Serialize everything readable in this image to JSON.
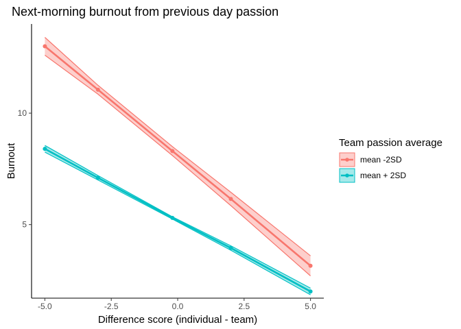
{
  "chart_data": {
    "type": "line",
    "title": "Next-morning burnout from previous day passion",
    "xlabel": "Difference score (individual - team)",
    "ylabel": "Burnout",
    "xlim": [
      -5.5,
      5.5
    ],
    "ylim": [
      1.7,
      14.0
    ],
    "x_ticks": [
      -5.0,
      -2.5,
      0.0,
      2.5,
      5.0
    ],
    "x_tick_labels": [
      "-5.0",
      "-2.5",
      "0.0",
      "2.5",
      "5.0"
    ],
    "y_ticks": [
      5,
      10
    ],
    "y_tick_labels": [
      "5",
      "10"
    ],
    "grid": false,
    "legend": {
      "title": "Team passion average",
      "position": "right"
    },
    "x": [
      -5.0,
      -3.0,
      -0.2,
      2.0,
      5.0
    ],
    "series": [
      {
        "name": "mean -2SD",
        "color": "#F8766D",
        "values": [
          13.0,
          11.05,
          8.3,
          6.15,
          3.15
        ],
        "ci_lower": [
          12.6,
          10.85,
          8.1,
          5.85,
          2.7
        ],
        "ci_upper": [
          13.4,
          11.25,
          8.5,
          6.45,
          3.6
        ]
      },
      {
        "name": "mean + 2SD",
        "color": "#00BFC4",
        "values": [
          8.4,
          7.1,
          5.3,
          3.95,
          2.0
        ],
        "ci_lower": [
          8.25,
          7.0,
          5.25,
          3.85,
          1.85
        ],
        "ci_upper": [
          8.55,
          7.2,
          5.35,
          4.05,
          2.15
        ]
      }
    ]
  }
}
